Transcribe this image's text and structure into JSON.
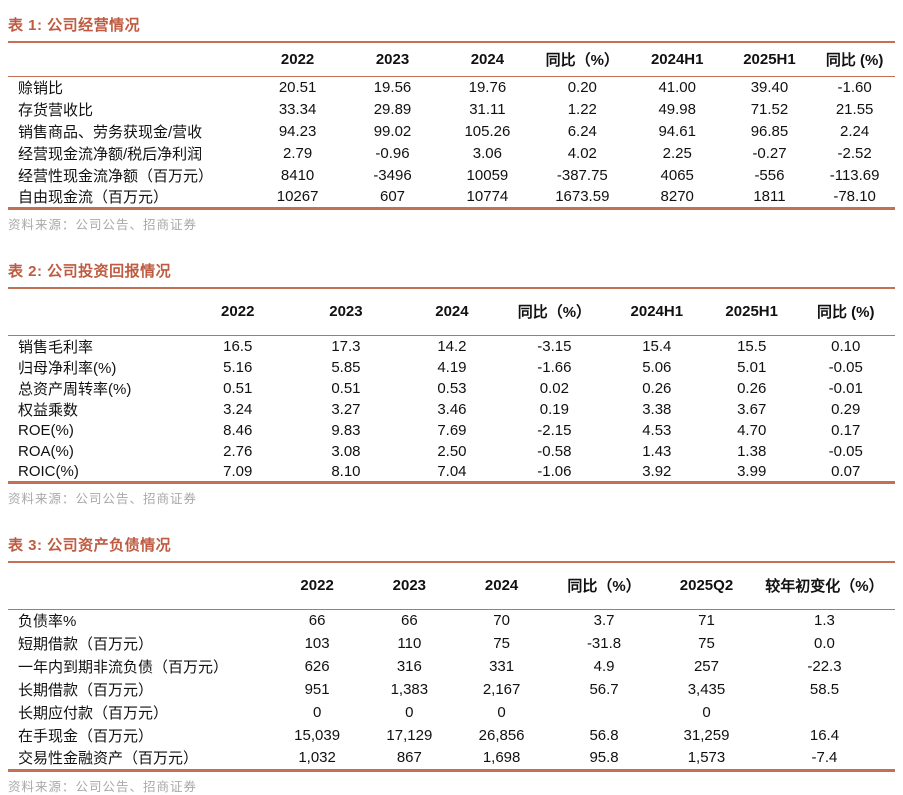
{
  "colors": {
    "title_accent": "#bf5b41",
    "rule_accent": "#c47055",
    "source_text": "#a9a9a9",
    "body_text": "#111111"
  },
  "tables": [
    {
      "title": "表 1:  公司经营情况",
      "columns": [
        "",
        "2022",
        "2023",
        "2024",
        "同比（%）",
        "2024H1",
        "2025H1",
        "同比 (%)"
      ],
      "rows": [
        {
          "label": "赊销比",
          "values": [
            "20.51",
            "19.56",
            "19.76",
            "0.20",
            "41.00",
            "39.40",
            "-1.60"
          ]
        },
        {
          "label": "存货营收比",
          "values": [
            "33.34",
            "29.89",
            "31.11",
            "1.22",
            "49.98",
            "71.52",
            "21.55"
          ]
        },
        {
          "label": "销售商品、劳务获现金/营收",
          "values": [
            "94.23",
            "99.02",
            "105.26",
            "6.24",
            "94.61",
            "96.85",
            "2.24"
          ]
        },
        {
          "label": "经营现金流净额/税后净利润",
          "values": [
            "2.79",
            "-0.96",
            "3.06",
            "4.02",
            "2.25",
            "-0.27",
            "-2.52"
          ]
        },
        {
          "label": "经营性现金流净额（百万元）",
          "values": [
            "8410",
            "-3496",
            "10059",
            "-387.75",
            "4065",
            "-556",
            "-113.69"
          ]
        },
        {
          "label": "自由现金流（百万元）",
          "values": [
            "10267",
            "607",
            "10774",
            "1673.59",
            "8270",
            "1811",
            "-78.10"
          ]
        }
      ],
      "source": "资料来源：公司公告、招商证券"
    },
    {
      "title": "表 2:  公司投资回报情况",
      "columns": [
        "",
        "2022",
        "2023",
        "2024",
        "同比（%）",
        "2024H1",
        "2025H1",
        "同比 (%)"
      ],
      "rows": [
        {
          "label": "销售毛利率",
          "values": [
            "16.5",
            "17.3",
            "14.2",
            "-3.15",
            "15.4",
            "15.5",
            "0.10"
          ]
        },
        {
          "label": "归母净利率(%)",
          "values": [
            "5.16",
            "5.85",
            "4.19",
            "-1.66",
            "5.06",
            "5.01",
            "-0.05"
          ]
        },
        {
          "label": "总资产周转率(%)",
          "values": [
            "0.51",
            "0.51",
            "0.53",
            "0.02",
            "0.26",
            "0.26",
            "-0.01"
          ]
        },
        {
          "label": "权益乘数",
          "values": [
            "3.24",
            "3.27",
            "3.46",
            "0.19",
            "3.38",
            "3.67",
            "0.29"
          ]
        },
        {
          "label": "ROE(%)",
          "values": [
            "8.46",
            "9.83",
            "7.69",
            "-2.15",
            "4.53",
            "4.70",
            "0.17"
          ]
        },
        {
          "label": "ROA(%)",
          "values": [
            "2.76",
            "3.08",
            "2.50",
            "-0.58",
            "1.43",
            "1.38",
            "-0.05"
          ]
        },
        {
          "label": "ROIC(%)",
          "values": [
            "7.09",
            "8.10",
            "7.04",
            "-1.06",
            "3.92",
            "3.99",
            "0.07"
          ]
        }
      ],
      "source": "资料来源：公司公告、招商证券"
    },
    {
      "title": "表 3:  公司资产负债情况",
      "columns": [
        "",
        "2022",
        "2023",
        "2024",
        "同比（%）",
        "2025Q2",
        "较年初变化（%）"
      ],
      "rows": [
        {
          "label": "负债率%",
          "values": [
            "66",
            "66",
            "70",
            "3.7",
            "71",
            "1.3"
          ]
        },
        {
          "label": "短期借款（百万元）",
          "values": [
            "103",
            "110",
            "75",
            "-31.8",
            "75",
            "0.0"
          ]
        },
        {
          "label": "一年内到期非流负债（百万元）",
          "values": [
            "626",
            "316",
            "331",
            "4.9",
            "257",
            "-22.3"
          ]
        },
        {
          "label": "长期借款（百万元）",
          "values": [
            "951",
            "1,383",
            "2,167",
            "56.7",
            "3,435",
            "58.5"
          ]
        },
        {
          "label": "长期应付款（百万元）",
          "values": [
            "0",
            "0",
            "0",
            "",
            "0",
            ""
          ]
        },
        {
          "label": "在手现金（百万元）",
          "values": [
            "15,039",
            "17,129",
            "26,856",
            "56.8",
            "31,259",
            "16.4"
          ]
        },
        {
          "label": "交易性金融资产（百万元）",
          "values": [
            "1,032",
            "867",
            "1,698",
            "95.8",
            "1,573",
            "-7.4"
          ]
        }
      ],
      "source": "资料来源：公司公告、招商证券"
    }
  ]
}
